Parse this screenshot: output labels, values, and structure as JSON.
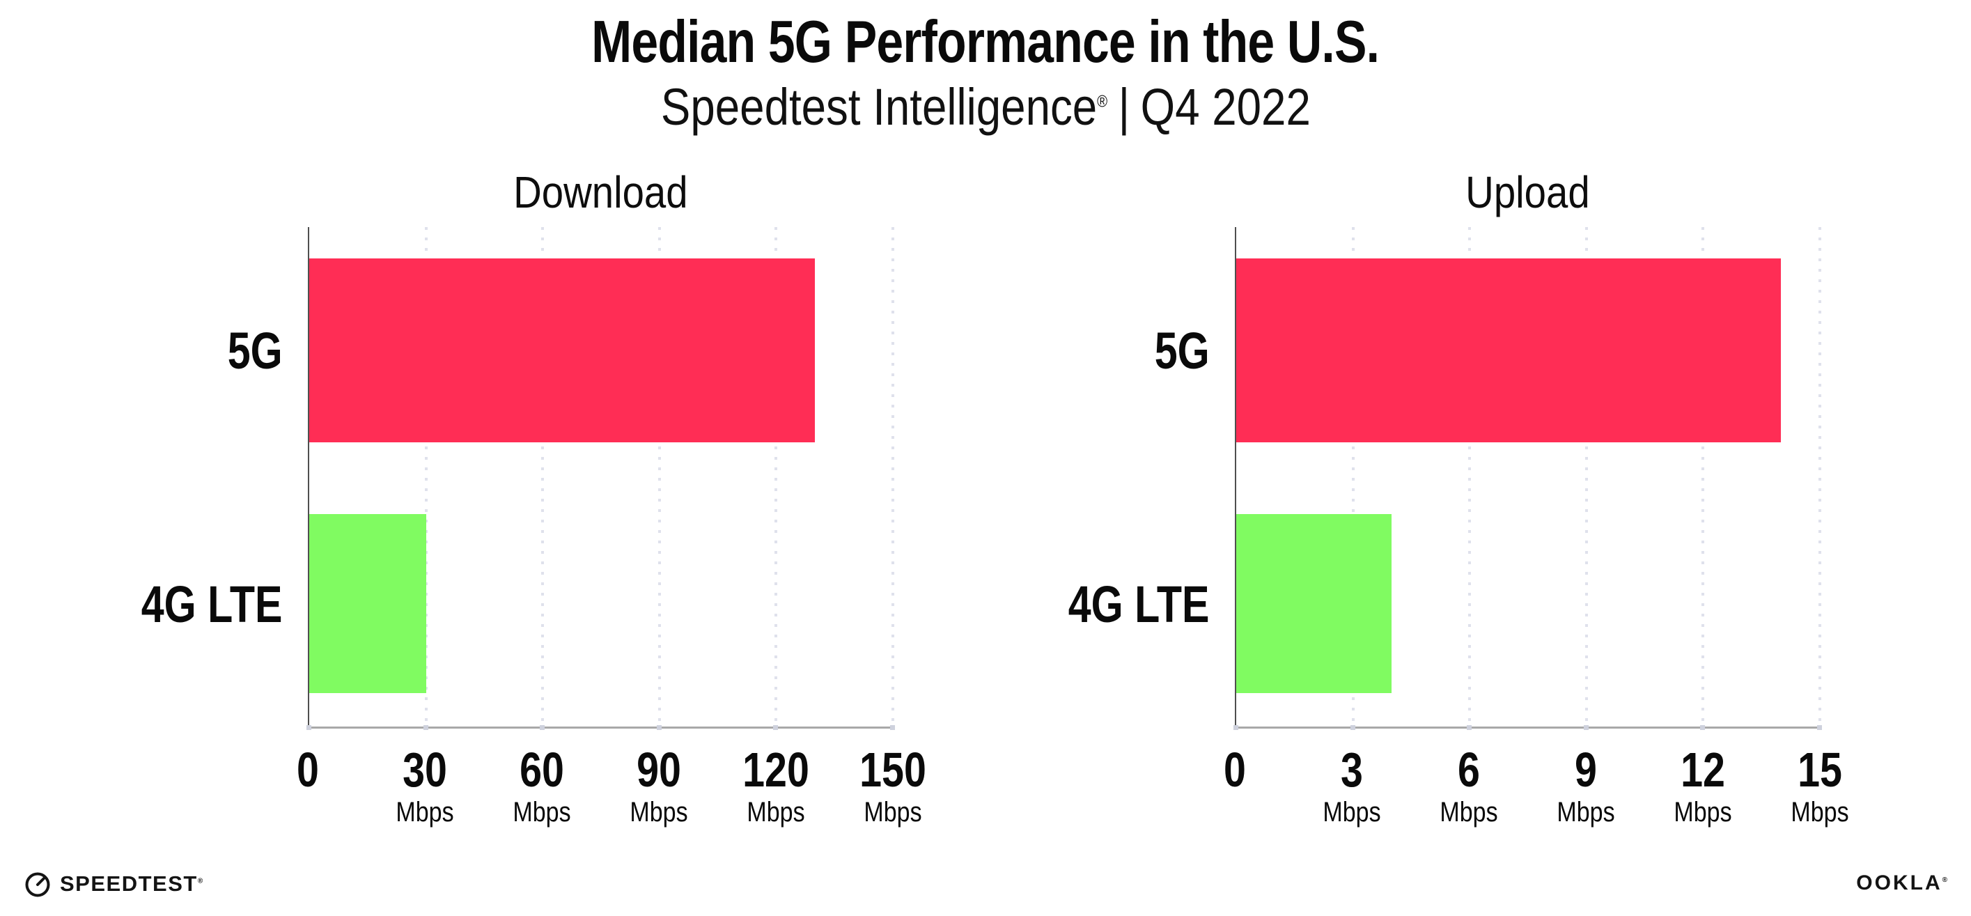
{
  "header": {
    "title": "Median 5G Performance in the U.S.",
    "subtitle_brand": "Speedtest Intelligence",
    "subtitle_mark": "®",
    "subtitle_sep": "|",
    "subtitle_period": "Q4 2022"
  },
  "colors": {
    "bar_5g": "#FF2D55",
    "bar_4g_lte": "#80FB61",
    "grid_dots": "#DFE1EC",
    "axis_baseline": "#A8A8A8",
    "axis_spine": "#4F4F4F",
    "text": "#0A0A0A"
  },
  "chart_data": [
    {
      "type": "bar",
      "orientation": "horizontal",
      "title": "Download",
      "categories": [
        "5G",
        "4G LTE"
      ],
      "values": [
        130,
        30
      ],
      "unit": "Mbps",
      "xlabel": "",
      "ylabel": "",
      "xlim": [
        0,
        150
      ],
      "xticks": [
        0,
        30,
        60,
        90,
        120,
        150
      ],
      "bar_colors": [
        "#FF2D55",
        "#80FB61"
      ],
      "grid": "dotted vertical lines at each tick",
      "legend": "none"
    },
    {
      "type": "bar",
      "orientation": "horizontal",
      "title": "Upload",
      "categories": [
        "5G",
        "4G LTE"
      ],
      "values": [
        14,
        4
      ],
      "unit": "Mbps",
      "xlabel": "",
      "ylabel": "",
      "xlim": [
        0,
        15
      ],
      "xticks": [
        0,
        3,
        6,
        9,
        12,
        15
      ],
      "bar_colors": [
        "#FF2D55",
        "#80FB61"
      ],
      "grid": "dotted vertical lines at each tick",
      "legend": "none"
    }
  ],
  "footer": {
    "speedtest_label": "SPEEDTEST",
    "speedtest_mark": "®",
    "ookla_label": "OOKLA",
    "ookla_mark": "®"
  }
}
